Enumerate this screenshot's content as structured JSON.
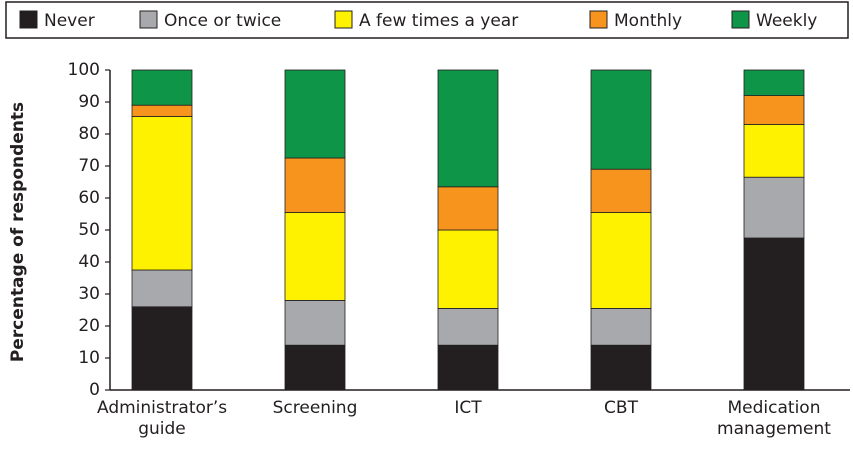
{
  "chart_data": {
    "type": "stacked_bar",
    "ylabel": "Percentage of respondents",
    "categories": [
      "Administrator’s guide",
      "Screening",
      "ICT",
      "CBT",
      "Medication management"
    ],
    "series": [
      {
        "name": "Never",
        "color": "#231f20",
        "values": [
          26,
          14,
          14,
          14,
          47.5
        ]
      },
      {
        "name": "Once or twice",
        "color": "#a7a9ac",
        "values": [
          11.5,
          14,
          11.5,
          11.5,
          19
        ]
      },
      {
        "name": "A few times a year",
        "color": "#fff200",
        "values": [
          48,
          27.5,
          24.5,
          30,
          16.5
        ]
      },
      {
        "name": "Monthly",
        "color": "#f7941d",
        "values": [
          3.5,
          17,
          13.5,
          13.5,
          9
        ]
      },
      {
        "name": "Weekly",
        "color": "#0f9548",
        "values": [
          11,
          27.5,
          36.5,
          31,
          8
        ]
      }
    ],
    "ylim": [
      0,
      100
    ],
    "yticks": [
      0,
      10,
      20,
      30,
      40,
      50,
      60,
      70,
      80,
      90,
      100
    ],
    "grid": false,
    "legend": "top"
  }
}
